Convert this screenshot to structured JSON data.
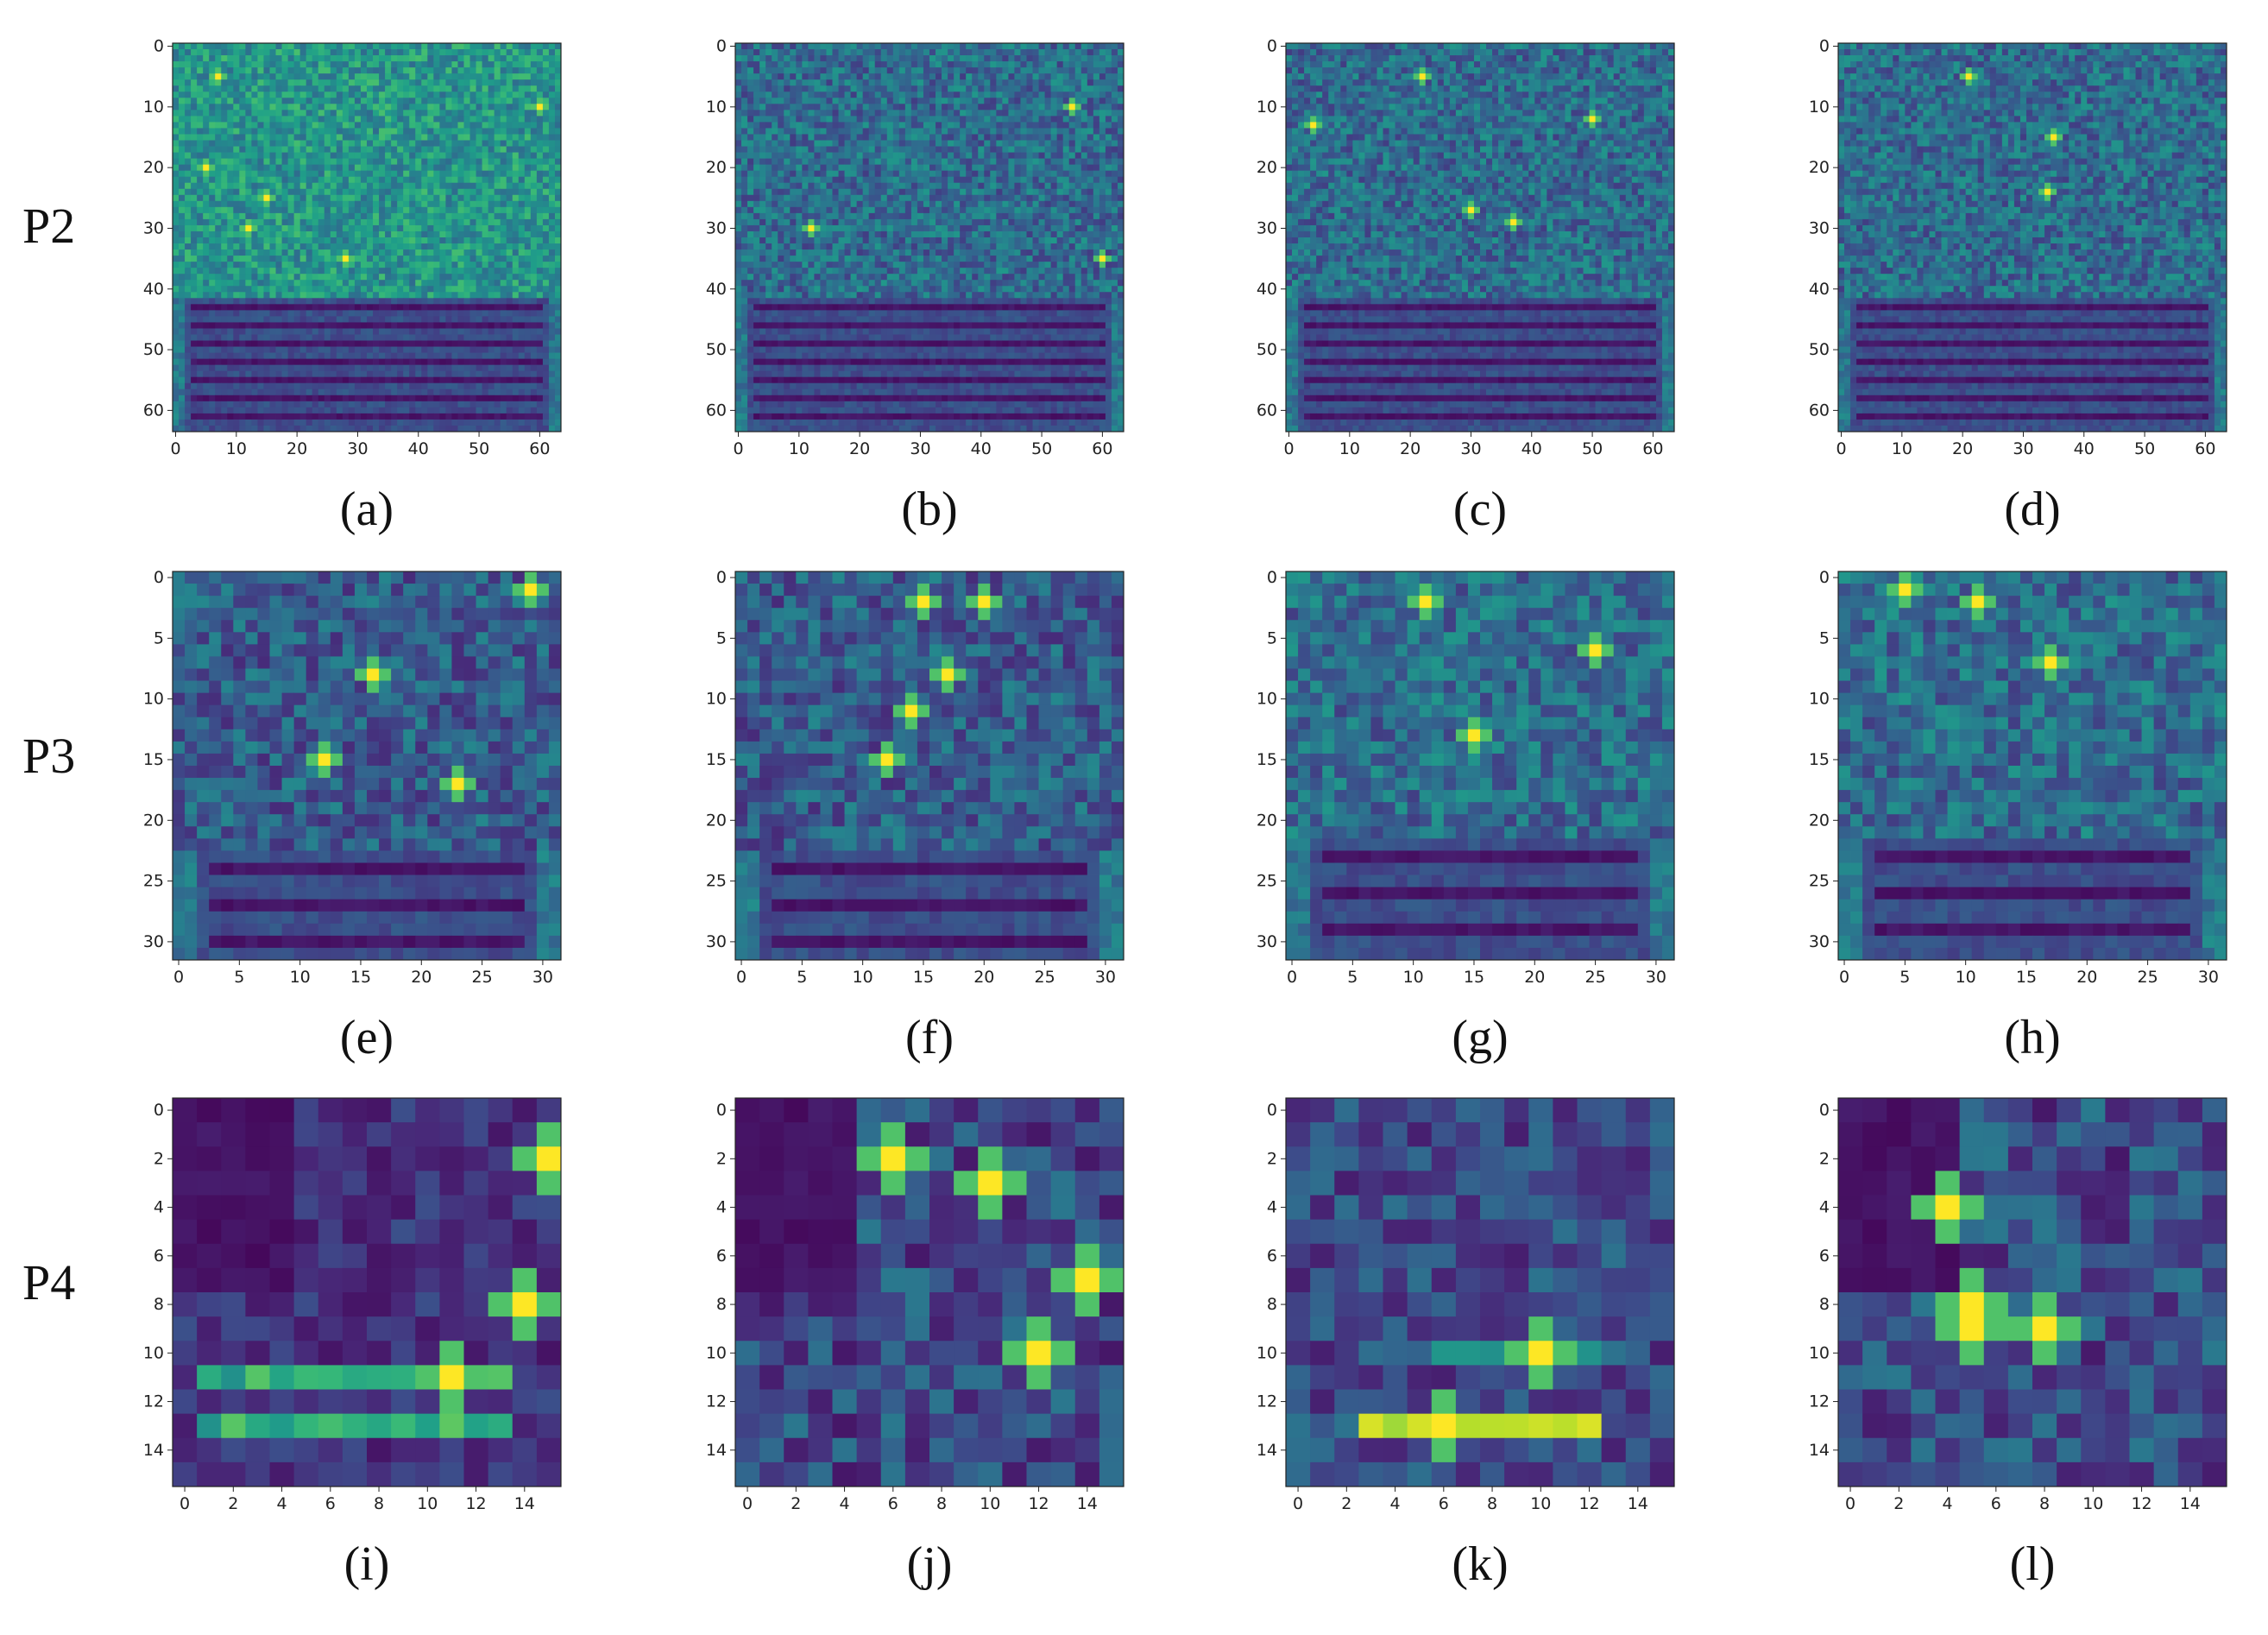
{
  "figure": {
    "row_labels": [
      "P2",
      "P3",
      "P4"
    ]
  },
  "colormap": {
    "name": "viridis",
    "stops": [
      "#440154",
      "#482878",
      "#3e4989",
      "#31688e",
      "#26828e",
      "#1f9e89",
      "#35b779",
      "#6ece58",
      "#b5de2b",
      "#fde725"
    ]
  },
  "chart_data": [
    {
      "type": "heatmap",
      "panel": "(a)",
      "row": "P2",
      "size": 64,
      "ticks": [
        0,
        10,
        20,
        30,
        40,
        50,
        60
      ],
      "pattern": "bright-noise-top",
      "hotspots": [
        [
          7,
          5
        ],
        [
          60,
          10
        ],
        [
          5,
          20
        ],
        [
          15,
          25
        ],
        [
          12,
          30
        ],
        [
          28,
          35
        ]
      ],
      "lower_band_rows": [
        42,
        63
      ]
    },
    {
      "type": "heatmap",
      "panel": "(b)",
      "row": "P2",
      "size": 64,
      "ticks": [
        0,
        10,
        20,
        30,
        40,
        50,
        60
      ],
      "pattern": "noise-top",
      "hotspots": [
        [
          55,
          10
        ],
        [
          12,
          30
        ],
        [
          60,
          35
        ]
      ],
      "lower_band_rows": [
        42,
        63
      ]
    },
    {
      "type": "heatmap",
      "panel": "(c)",
      "row": "P2",
      "size": 64,
      "ticks": [
        0,
        10,
        20,
        30,
        40,
        50,
        60
      ],
      "pattern": "noise-top",
      "hotspots": [
        [
          22,
          5
        ],
        [
          4,
          13
        ],
        [
          50,
          12
        ],
        [
          30,
          27
        ],
        [
          37,
          29
        ]
      ],
      "lower_band_rows": [
        42,
        63
      ]
    },
    {
      "type": "heatmap",
      "panel": "(d)",
      "row": "P2",
      "size": 64,
      "ticks": [
        0,
        10,
        20,
        30,
        40,
        50,
        60
      ],
      "pattern": "noise-top",
      "hotspots": [
        [
          21,
          5
        ],
        [
          35,
          15
        ],
        [
          34,
          24
        ]
      ],
      "lower_band_rows": [
        42,
        63
      ]
    },
    {
      "type": "heatmap",
      "panel": "(e)",
      "row": "P3",
      "size": 32,
      "ticks": [
        0,
        5,
        10,
        15,
        20,
        25,
        30
      ],
      "pattern": "diagonal-structure",
      "hotspots": [
        [
          23,
          17
        ],
        [
          16,
          8
        ],
        [
          12,
          15
        ],
        [
          29,
          1
        ]
      ],
      "lower_band_rows": [
        23,
        31
      ]
    },
    {
      "type": "heatmap",
      "panel": "(f)",
      "row": "P3",
      "size": 32,
      "ticks": [
        0,
        5,
        10,
        15,
        20,
        25,
        30
      ],
      "pattern": "diagonal-structure",
      "hotspots": [
        [
          17,
          8
        ],
        [
          15,
          2
        ],
        [
          20,
          2
        ],
        [
          14,
          11
        ],
        [
          12,
          15
        ]
      ],
      "lower_band_rows": [
        23,
        31
      ]
    },
    {
      "type": "heatmap",
      "panel": "(g)",
      "row": "P3",
      "size": 32,
      "ticks": [
        0,
        5,
        10,
        15,
        20,
        25,
        30
      ],
      "pattern": "noise-top",
      "hotspots": [
        [
          11,
          2
        ],
        [
          25,
          6
        ],
        [
          15,
          13
        ]
      ],
      "lower_band_rows": [
        22,
        31
      ]
    },
    {
      "type": "heatmap",
      "panel": "(h)",
      "row": "P3",
      "size": 32,
      "ticks": [
        0,
        5,
        10,
        15,
        20,
        25,
        30
      ],
      "pattern": "noise-top",
      "hotspots": [
        [
          11,
          2
        ],
        [
          17,
          7
        ],
        [
          5,
          1
        ]
      ],
      "lower_band_rows": [
        22,
        31
      ]
    },
    {
      "type": "heatmap",
      "panel": "(i)",
      "row": "P4",
      "size": 16,
      "ticks": [
        0,
        2,
        4,
        6,
        8,
        10,
        12,
        14
      ],
      "pattern": "bands",
      "hotspots": [
        [
          11,
          11
        ],
        [
          15,
          2
        ],
        [
          14,
          8
        ]
      ],
      "lower_band_rows": [
        11,
        13
      ]
    },
    {
      "type": "heatmap",
      "panel": "(j)",
      "row": "P4",
      "size": 16,
      "ticks": [
        0,
        2,
        4,
        6,
        8,
        10,
        12,
        14
      ],
      "pattern": "scattered",
      "hotspots": [
        [
          12,
          10
        ],
        [
          10,
          3
        ],
        [
          6,
          2
        ],
        [
          14,
          7
        ]
      ],
      "lower_band_rows": [
        11,
        11
      ]
    },
    {
      "type": "heatmap",
      "panel": "(k)",
      "row": "P4",
      "size": 16,
      "ticks": [
        0,
        2,
        4,
        6,
        8,
        10,
        12,
        14
      ],
      "pattern": "bright-band",
      "hotspots": [
        [
          6,
          13
        ],
        [
          10,
          10
        ]
      ],
      "lower_band_rows": [
        13,
        13
      ]
    },
    {
      "type": "heatmap",
      "panel": "(l)",
      "row": "P4",
      "size": 16,
      "ticks": [
        0,
        2,
        4,
        6,
        8,
        10,
        12,
        14
      ],
      "pattern": "scattered",
      "hotspots": [
        [
          5,
          9
        ],
        [
          5,
          8
        ],
        [
          8,
          9
        ],
        [
          4,
          4
        ]
      ],
      "lower_band_rows": [
        14,
        15
      ]
    }
  ]
}
